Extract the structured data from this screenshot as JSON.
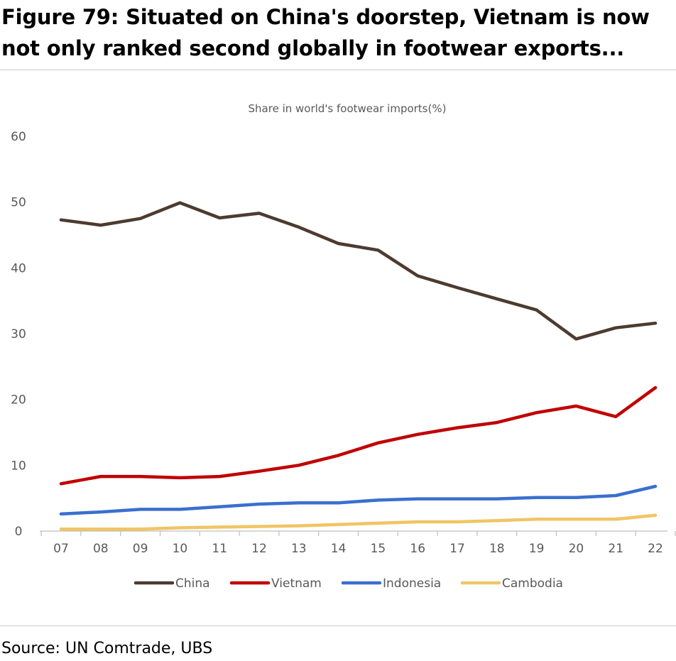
{
  "figure": {
    "title": "Figure 79: Situated on China's doorstep, Vietnam is now not only ranked second globally in footwear exports...",
    "source": "Source: UN Comtrade, UBS"
  },
  "chart_data": {
    "type": "line",
    "title": "Share in world's footwear imports(%)",
    "xlabel": "",
    "ylabel": "",
    "categories": [
      "07",
      "08",
      "09",
      "10",
      "11",
      "12",
      "13",
      "14",
      "15",
      "16",
      "17",
      "18",
      "19",
      "20",
      "21",
      "22"
    ],
    "ylim": [
      0,
      60
    ],
    "yticks": [
      0,
      10,
      20,
      30,
      40,
      50,
      60
    ],
    "grid": false,
    "legend_position": "bottom",
    "series": [
      {
        "name": "China",
        "color": "#4d3b30",
        "values": [
          47.3,
          46.5,
          47.5,
          49.9,
          47.6,
          48.3,
          46.2,
          43.7,
          42.7,
          38.8,
          37.0,
          35.3,
          33.6,
          29.2,
          30.9,
          31.6
        ]
      },
      {
        "name": "Vietnam",
        "color": "#c00000",
        "values": [
          7.2,
          8.3,
          8.3,
          8.1,
          8.3,
          9.1,
          10.0,
          11.5,
          13.4,
          14.7,
          15.7,
          16.5,
          18.0,
          19.0,
          17.4,
          21.8
        ]
      },
      {
        "name": "Indonesia",
        "color": "#3a6fcf",
        "values": [
          2.6,
          2.9,
          3.3,
          3.3,
          3.7,
          4.1,
          4.3,
          4.3,
          4.7,
          4.9,
          4.9,
          4.9,
          5.1,
          5.1,
          5.4,
          6.8
        ]
      },
      {
        "name": "Cambodia",
        "color": "#f0c566",
        "values": [
          0.3,
          0.3,
          0.3,
          0.5,
          0.6,
          0.7,
          0.8,
          1.0,
          1.2,
          1.4,
          1.4,
          1.6,
          1.8,
          1.8,
          1.8,
          2.4
        ]
      }
    ]
  }
}
